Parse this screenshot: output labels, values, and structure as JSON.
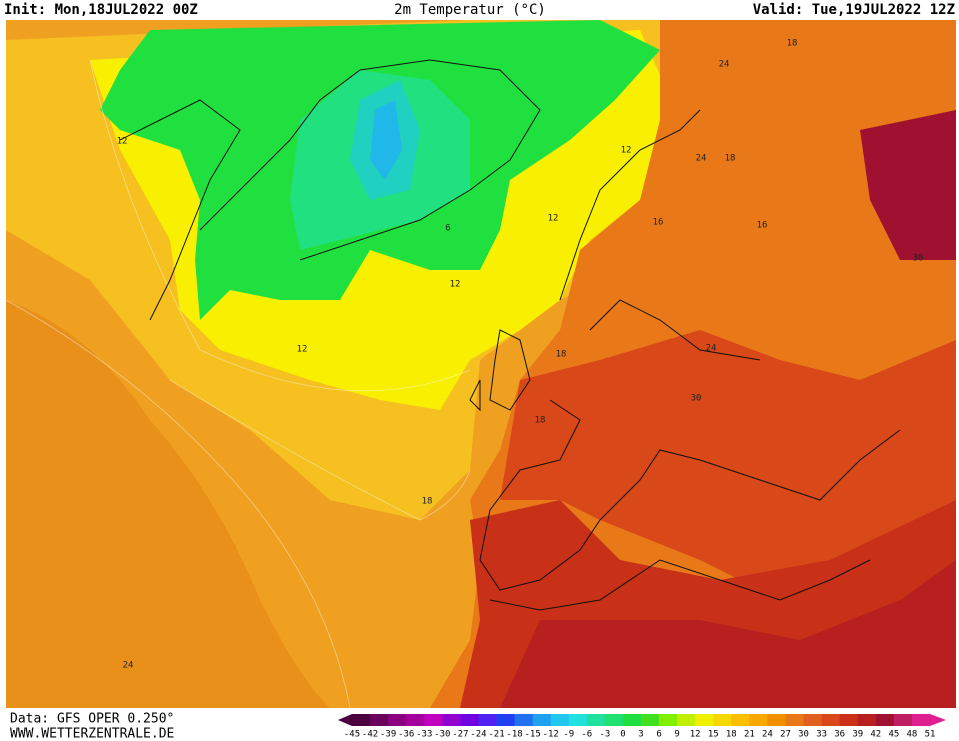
{
  "header": {
    "init": "Init: Mon,18JUL2022 00Z",
    "title": "2m Temperatur (°C)",
    "valid": "Valid: Tue,19JUL2022 12Z"
  },
  "footer": {
    "source": "Data: GFS OPER 0.250°",
    "website": "WWW.WETTERZENTRALE.DE"
  },
  "map": {
    "contour_labels": [
      12,
      12,
      12,
      12,
      12,
      6,
      18,
      18,
      18,
      24,
      18,
      24,
      16,
      16,
      18,
      24,
      30,
      30,
      24
    ]
  },
  "legend": {
    "ticks": [
      -45,
      -42,
      -39,
      -36,
      -33,
      -30,
      -27,
      -24,
      -21,
      -18,
      -15,
      -12,
      -9,
      -6,
      -3,
      0,
      3,
      6,
      9,
      12,
      15,
      18,
      21,
      24,
      27,
      30,
      33,
      36,
      39,
      42,
      45,
      48,
      51
    ],
    "colors": [
      "#4b0040",
      "#6a005e",
      "#8a007e",
      "#a400a0",
      "#c000c0",
      "#9000d0",
      "#7000e0",
      "#5020f0",
      "#2040f0",
      "#2070f0",
      "#20a0f0",
      "#20c8f0",
      "#20e0e0",
      "#20e0a0",
      "#20e070",
      "#20e040",
      "#40e020",
      "#80f000",
      "#c0f000",
      "#f0f000",
      "#f8d800",
      "#f8c000",
      "#f8a800",
      "#f09000",
      "#e87818",
      "#e06020",
      "#d84818",
      "#c83018",
      "#b82020",
      "#a01030",
      "#c02060",
      "#e02090"
    ]
  }
}
